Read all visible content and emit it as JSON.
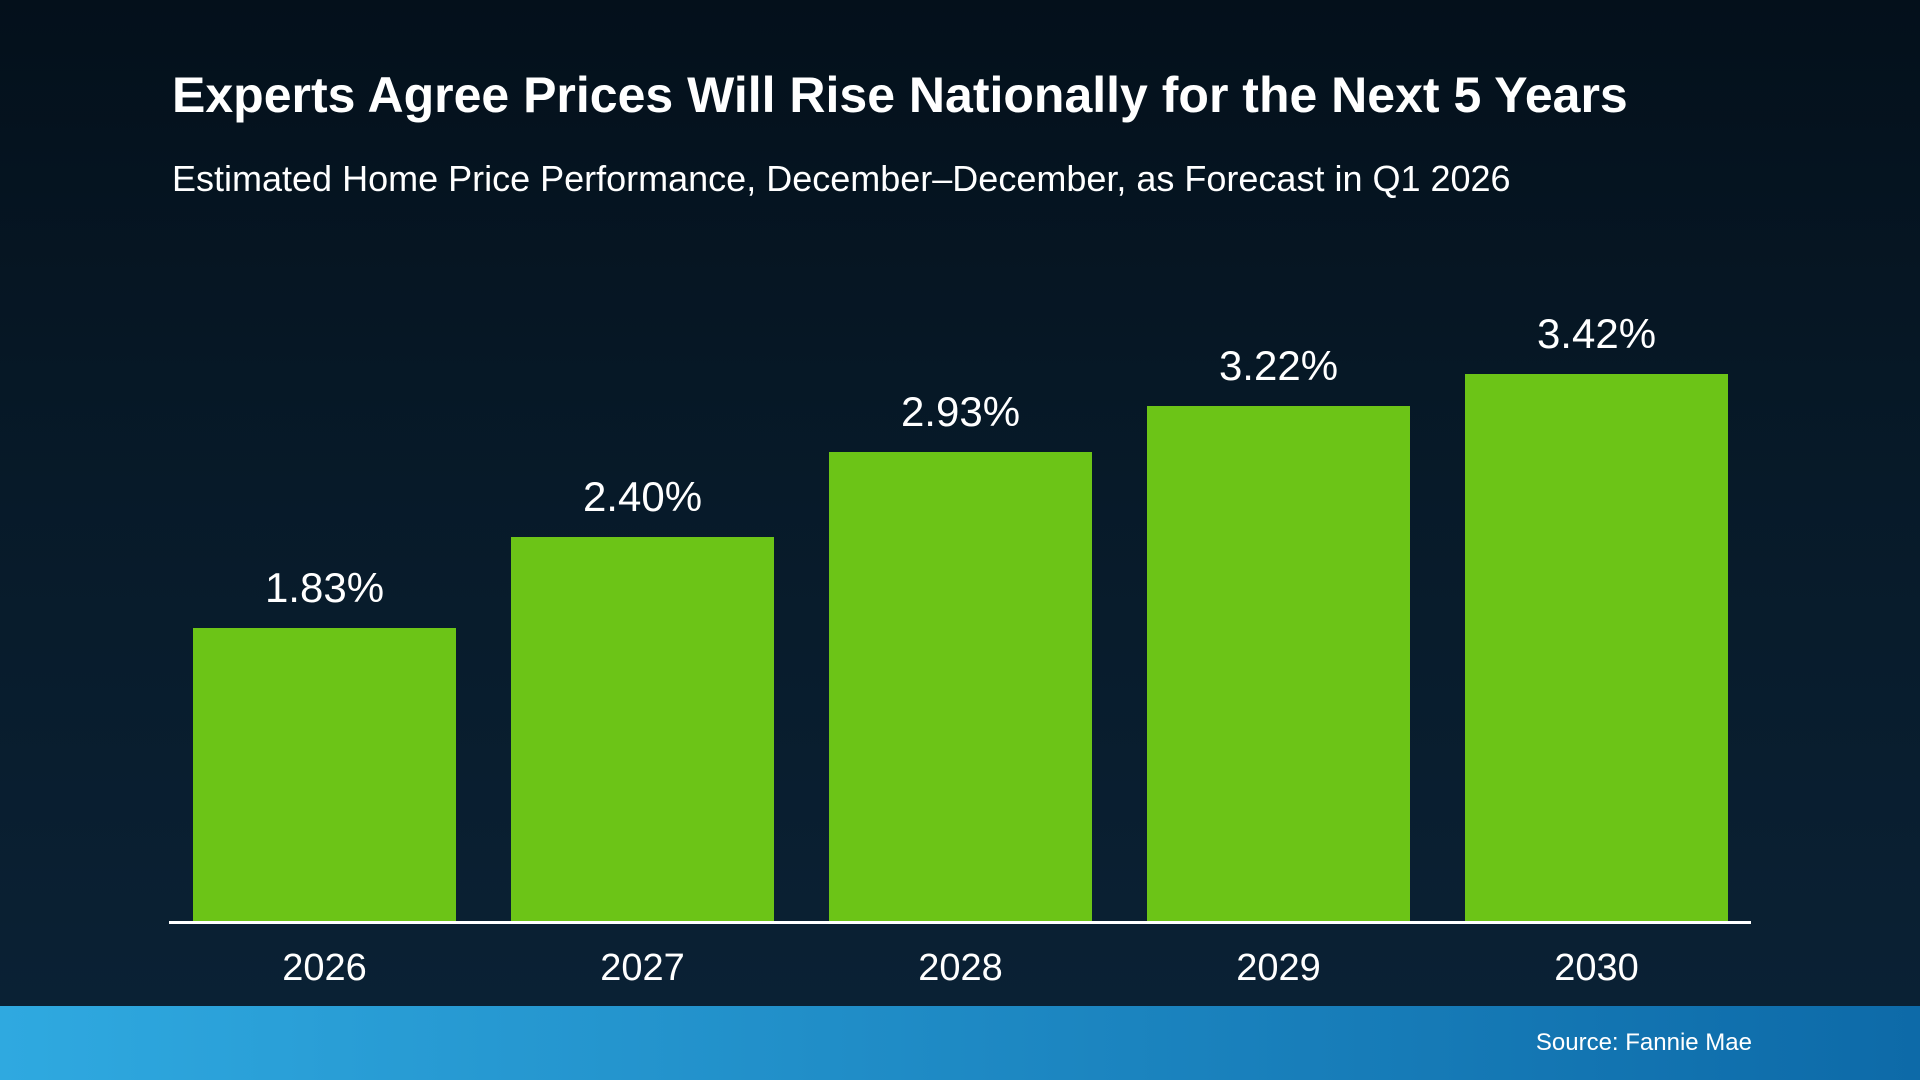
{
  "chart_data": {
    "type": "bar",
    "title": "Experts Agree Prices Will Rise Nationally for the Next 5 Years",
    "subtitle": "Estimated Home Price Performance, December–December, as Forecast in Q1 2026",
    "categories": [
      "2026",
      "2027",
      "2028",
      "2029",
      "2030"
    ],
    "values": [
      1.83,
      2.4,
      2.93,
      3.22,
      3.42
    ],
    "value_labels": [
      "1.83%",
      "2.40%",
      "2.93%",
      "3.22%",
      "3.42%"
    ],
    "xlabel": "",
    "ylabel": "",
    "ylim": [
      0,
      4
    ],
    "grid": false,
    "legend": "none"
  },
  "footer": {
    "source": "Source: Fannie Mae"
  },
  "colors": {
    "bar_green": "#6cc417",
    "background_top": "#04101b",
    "background_bottom": "#0b2236",
    "footer_left": "#2fa9e0",
    "footer_right": "#0d6aa8",
    "text": "#ffffff"
  }
}
